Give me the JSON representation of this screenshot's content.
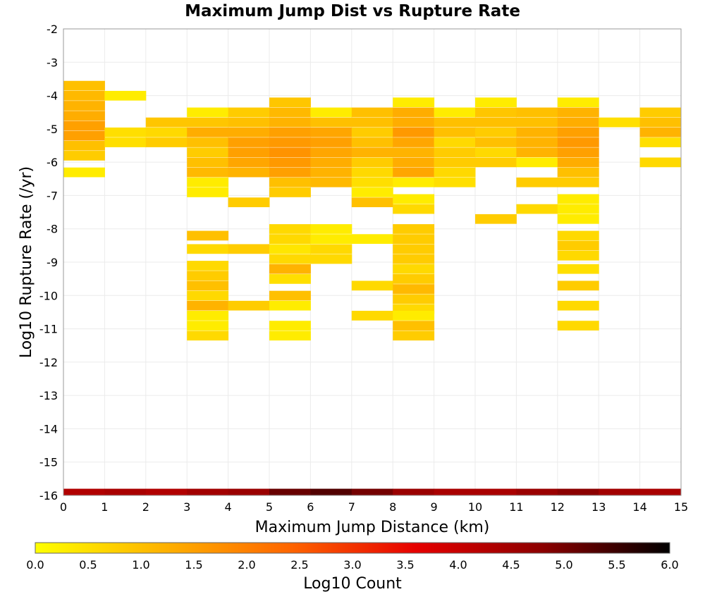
{
  "chart_data": {
    "type": "heatmap",
    "title": "Maximum Jump Dist vs Rupture Rate",
    "xlabel": "Maximum Jump Distance (km)",
    "ylabel": "Log10 Rupture Rate (/yr)",
    "xlim": [
      0,
      15
    ],
    "ylim": [
      -16,
      -2
    ],
    "x_ticks": [
      "0",
      "1",
      "2",
      "3",
      "4",
      "5",
      "6",
      "7",
      "8",
      "9",
      "10",
      "11",
      "12",
      "13",
      "14",
      "15"
    ],
    "y_ticks": [
      "-2",
      "-3",
      "-4",
      "-5",
      "-6",
      "-7",
      "-8",
      "-9",
      "-10",
      "-11",
      "-12",
      "-13",
      "-14",
      "-15",
      "-16"
    ],
    "grid": true,
    "bin_width_x": 1,
    "bin_height_y": 0.28,
    "colorbar": {
      "label": "Log10 Count",
      "range": [
        0,
        6
      ],
      "ticks": [
        "0.0",
        "0.5",
        "1.0",
        "1.5",
        "2.0",
        "2.5",
        "3.0",
        "3.5",
        "4.0",
        "4.5",
        "5.0",
        "5.5",
        "6.0"
      ],
      "colors": [
        "#ffff00",
        "#ffb300",
        "#ff6600",
        "#e60000",
        "#8b0000",
        "#000000"
      ]
    },
    "cells": [
      {
        "x": 0,
        "y": -3.7,
        "v": 1.0
      },
      {
        "x": 0,
        "y": -4.0,
        "v": 1.1
      },
      {
        "x": 0,
        "y": -4.3,
        "v": 1.2
      },
      {
        "x": 0,
        "y": -4.6,
        "v": 1.3
      },
      {
        "x": 0,
        "y": -4.9,
        "v": 1.5
      },
      {
        "x": 0,
        "y": -5.2,
        "v": 1.5
      },
      {
        "x": 0,
        "y": -5.5,
        "v": 1.0
      },
      {
        "x": 0,
        "y": -5.8,
        "v": 0.8
      },
      {
        "x": 0,
        "y": -6.3,
        "v": 0.3
      },
      {
        "x": 1,
        "y": -4.0,
        "v": 0.3
      },
      {
        "x": 1,
        "y": -5.1,
        "v": 0.5
      },
      {
        "x": 1,
        "y": -5.4,
        "v": 0.5
      },
      {
        "x": 2,
        "y": -4.8,
        "v": 0.9
      },
      {
        "x": 2,
        "y": -5.1,
        "v": 0.6
      },
      {
        "x": 2,
        "y": -5.4,
        "v": 0.8
      },
      {
        "x": 3,
        "y": -4.5,
        "v": 0.3
      },
      {
        "x": 3,
        "y": -4.8,
        "v": 0.9
      },
      {
        "x": 3,
        "y": -5.1,
        "v": 1.3
      },
      {
        "x": 3,
        "y": -5.4,
        "v": 1.0
      },
      {
        "x": 3,
        "y": -5.7,
        "v": 0.8
      },
      {
        "x": 3,
        "y": -6.0,
        "v": 1.0
      },
      {
        "x": 3,
        "y": -6.3,
        "v": 1.1
      },
      {
        "x": 3,
        "y": -6.6,
        "v": 0.3
      },
      {
        "x": 3,
        "y": -6.9,
        "v": 0.3
      },
      {
        "x": 3,
        "y": -8.2,
        "v": 1.0
      },
      {
        "x": 3,
        "y": -8.6,
        "v": 0.6
      },
      {
        "x": 3,
        "y": -9.1,
        "v": 0.6
      },
      {
        "x": 3,
        "y": -9.4,
        "v": 0.8
      },
      {
        "x": 3,
        "y": -9.7,
        "v": 1.0
      },
      {
        "x": 3,
        "y": -10.0,
        "v": 0.6
      },
      {
        "x": 3,
        "y": -10.3,
        "v": 1.2
      },
      {
        "x": 3,
        "y": -10.6,
        "v": 0.3
      },
      {
        "x": 3,
        "y": -10.9,
        "v": 0.3
      },
      {
        "x": 3,
        "y": -11.2,
        "v": 0.6
      },
      {
        "x": 4,
        "y": -4.5,
        "v": 0.8
      },
      {
        "x": 4,
        "y": -4.8,
        "v": 1.0
      },
      {
        "x": 4,
        "y": -5.1,
        "v": 1.3
      },
      {
        "x": 4,
        "y": -5.4,
        "v": 1.5
      },
      {
        "x": 4,
        "y": -5.7,
        "v": 1.5
      },
      {
        "x": 4,
        "y": -6.0,
        "v": 1.4
      },
      {
        "x": 4,
        "y": -6.3,
        "v": 1.2
      },
      {
        "x": 4,
        "y": -7.2,
        "v": 0.8
      },
      {
        "x": 4,
        "y": -8.6,
        "v": 0.8
      },
      {
        "x": 4,
        "y": -10.3,
        "v": 0.8
      },
      {
        "x": 5,
        "y": -4.2,
        "v": 0.9
      },
      {
        "x": 5,
        "y": -4.5,
        "v": 1.1
      },
      {
        "x": 5,
        "y": -4.8,
        "v": 1.2
      },
      {
        "x": 5,
        "y": -5.1,
        "v": 1.5
      },
      {
        "x": 5,
        "y": -5.4,
        "v": 1.6
      },
      {
        "x": 5,
        "y": -5.7,
        "v": 1.7
      },
      {
        "x": 5,
        "y": -6.0,
        "v": 1.6
      },
      {
        "x": 5,
        "y": -6.3,
        "v": 1.5
      },
      {
        "x": 5,
        "y": -6.6,
        "v": 1.0
      },
      {
        "x": 5,
        "y": -6.9,
        "v": 0.8
      },
      {
        "x": 5,
        "y": -8.0,
        "v": 0.6
      },
      {
        "x": 5,
        "y": -8.3,
        "v": 0.6
      },
      {
        "x": 5,
        "y": -8.6,
        "v": 0.4
      },
      {
        "x": 5,
        "y": -8.9,
        "v": 0.6
      },
      {
        "x": 5,
        "y": -9.2,
        "v": 1.2
      },
      {
        "x": 5,
        "y": -9.5,
        "v": 0.5
      },
      {
        "x": 5,
        "y": -10.0,
        "v": 1.0
      },
      {
        "x": 5,
        "y": -10.3,
        "v": 0.3
      },
      {
        "x": 5,
        "y": -10.9,
        "v": 0.3
      },
      {
        "x": 5,
        "y": -11.2,
        "v": 0.3
      },
      {
        "x": 6,
        "y": -4.5,
        "v": 0.3
      },
      {
        "x": 6,
        "y": -4.8,
        "v": 1.0
      },
      {
        "x": 6,
        "y": -5.1,
        "v": 1.4
      },
      {
        "x": 6,
        "y": -5.4,
        "v": 1.5
      },
      {
        "x": 6,
        "y": -5.7,
        "v": 1.4
      },
      {
        "x": 6,
        "y": -6.0,
        "v": 1.3
      },
      {
        "x": 6,
        "y": -6.3,
        "v": 1.2
      },
      {
        "x": 6,
        "y": -6.6,
        "v": 1.1
      },
      {
        "x": 6,
        "y": -8.0,
        "v": 0.3
      },
      {
        "x": 6,
        "y": -8.3,
        "v": 0.3
      },
      {
        "x": 6,
        "y": -8.6,
        "v": 0.6
      },
      {
        "x": 6,
        "y": -8.9,
        "v": 0.6
      },
      {
        "x": 7,
        "y": -4.5,
        "v": 1.0
      },
      {
        "x": 7,
        "y": -4.8,
        "v": 1.0
      },
      {
        "x": 7,
        "y": -5.1,
        "v": 0.8
      },
      {
        "x": 7,
        "y": -5.4,
        "v": 1.0
      },
      {
        "x": 7,
        "y": -5.7,
        "v": 1.2
      },
      {
        "x": 7,
        "y": -6.0,
        "v": 0.8
      },
      {
        "x": 7,
        "y": -6.3,
        "v": 0.6
      },
      {
        "x": 7,
        "y": -6.6,
        "v": 0.5
      },
      {
        "x": 7,
        "y": -6.9,
        "v": 0.3
      },
      {
        "x": 7,
        "y": -7.2,
        "v": 1.0
      },
      {
        "x": 7,
        "y": -8.3,
        "v": 0.3
      },
      {
        "x": 7,
        "y": -9.7,
        "v": 0.6
      },
      {
        "x": 7,
        "y": -10.6,
        "v": 0.6
      },
      {
        "x": 8,
        "y": -4.2,
        "v": 0.3
      },
      {
        "x": 8,
        "y": -4.5,
        "v": 1.3
      },
      {
        "x": 8,
        "y": -4.8,
        "v": 1.3
      },
      {
        "x": 8,
        "y": -5.1,
        "v": 1.6
      },
      {
        "x": 8,
        "y": -5.4,
        "v": 1.4
      },
      {
        "x": 8,
        "y": -5.7,
        "v": 1.2
      },
      {
        "x": 8,
        "y": -6.0,
        "v": 1.3
      },
      {
        "x": 8,
        "y": -6.3,
        "v": 1.4
      },
      {
        "x": 8,
        "y": -6.6,
        "v": 0.3
      },
      {
        "x": 8,
        "y": -7.1,
        "v": 0.3
      },
      {
        "x": 8,
        "y": -7.4,
        "v": 0.6
      },
      {
        "x": 8,
        "y": -8.0,
        "v": 0.8
      },
      {
        "x": 8,
        "y": -8.3,
        "v": 0.8
      },
      {
        "x": 8,
        "y": -8.6,
        "v": 0.8
      },
      {
        "x": 8,
        "y": -8.9,
        "v": 0.8
      },
      {
        "x": 8,
        "y": -9.2,
        "v": 0.6
      },
      {
        "x": 8,
        "y": -9.5,
        "v": 0.8
      },
      {
        "x": 8,
        "y": -9.8,
        "v": 1.1
      },
      {
        "x": 8,
        "y": -10.1,
        "v": 0.8
      },
      {
        "x": 8,
        "y": -10.4,
        "v": 0.6
      },
      {
        "x": 8,
        "y": -10.6,
        "v": 0.3
      },
      {
        "x": 8,
        "y": -10.9,
        "v": 1.0
      },
      {
        "x": 8,
        "y": -11.2,
        "v": 0.8
      },
      {
        "x": 9,
        "y": -4.5,
        "v": 0.3
      },
      {
        "x": 9,
        "y": -4.8,
        "v": 1.0
      },
      {
        "x": 9,
        "y": -5.1,
        "v": 1.0
      },
      {
        "x": 9,
        "y": -5.4,
        "v": 0.6
      },
      {
        "x": 9,
        "y": -5.7,
        "v": 0.8
      },
      {
        "x": 9,
        "y": -6.0,
        "v": 0.8
      },
      {
        "x": 9,
        "y": -6.3,
        "v": 0.6
      },
      {
        "x": 9,
        "y": -6.6,
        "v": 0.5
      },
      {
        "x": 10,
        "y": -4.2,
        "v": 0.3
      },
      {
        "x": 10,
        "y": -4.5,
        "v": 0.9
      },
      {
        "x": 10,
        "y": -4.8,
        "v": 1.0
      },
      {
        "x": 10,
        "y": -5.1,
        "v": 0.8
      },
      {
        "x": 10,
        "y": -5.4,
        "v": 1.0
      },
      {
        "x": 10,
        "y": -5.7,
        "v": 0.6
      },
      {
        "x": 10,
        "y": -6.0,
        "v": 0.8
      },
      {
        "x": 10,
        "y": -7.7,
        "v": 0.8
      },
      {
        "x": 11,
        "y": -4.5,
        "v": 1.0
      },
      {
        "x": 11,
        "y": -4.8,
        "v": 1.0
      },
      {
        "x": 11,
        "y": -5.1,
        "v": 1.2
      },
      {
        "x": 11,
        "y": -5.4,
        "v": 1.2
      },
      {
        "x": 11,
        "y": -5.7,
        "v": 1.2
      },
      {
        "x": 11,
        "y": -6.0,
        "v": 0.3
      },
      {
        "x": 11,
        "y": -6.6,
        "v": 0.8
      },
      {
        "x": 11,
        "y": -7.4,
        "v": 0.6
      },
      {
        "x": 12,
        "y": -4.2,
        "v": 0.3
      },
      {
        "x": 12,
        "y": -4.5,
        "v": 1.2
      },
      {
        "x": 12,
        "y": -4.8,
        "v": 1.3
      },
      {
        "x": 12,
        "y": -5.1,
        "v": 1.5
      },
      {
        "x": 12,
        "y": -5.4,
        "v": 1.6
      },
      {
        "x": 12,
        "y": -5.7,
        "v": 1.5
      },
      {
        "x": 12,
        "y": -6.0,
        "v": 1.3
      },
      {
        "x": 12,
        "y": -6.3,
        "v": 1.0
      },
      {
        "x": 12,
        "y": -6.6,
        "v": 0.8
      },
      {
        "x": 12,
        "y": -7.1,
        "v": 0.3
      },
      {
        "x": 12,
        "y": -7.4,
        "v": 0.3
      },
      {
        "x": 12,
        "y": -7.7,
        "v": 0.3
      },
      {
        "x": 12,
        "y": -8.2,
        "v": 0.6
      },
      {
        "x": 12,
        "y": -8.5,
        "v": 0.8
      },
      {
        "x": 12,
        "y": -8.8,
        "v": 0.6
      },
      {
        "x": 12,
        "y": -9.2,
        "v": 0.5
      },
      {
        "x": 12,
        "y": -9.7,
        "v": 0.8
      },
      {
        "x": 12,
        "y": -10.3,
        "v": 0.6
      },
      {
        "x": 12,
        "y": -10.9,
        "v": 0.6
      },
      {
        "x": 13,
        "y": -4.8,
        "v": 0.5
      },
      {
        "x": 14,
        "y": -4.5,
        "v": 0.8
      },
      {
        "x": 14,
        "y": -4.8,
        "v": 1.0
      },
      {
        "x": 14,
        "y": -5.1,
        "v": 1.2
      },
      {
        "x": 14,
        "y": -5.4,
        "v": 0.5
      },
      {
        "x": 14,
        "y": -6.0,
        "v": 0.6
      }
    ],
    "bottom_row": {
      "y": -15.9,
      "values": [
        4.3,
        4.4,
        4.3,
        4.5,
        4.6,
        5.1,
        5.3,
        5.0,
        4.6,
        4.4,
        4.4,
        4.6,
        4.8,
        4.5,
        4.4
      ]
    }
  }
}
